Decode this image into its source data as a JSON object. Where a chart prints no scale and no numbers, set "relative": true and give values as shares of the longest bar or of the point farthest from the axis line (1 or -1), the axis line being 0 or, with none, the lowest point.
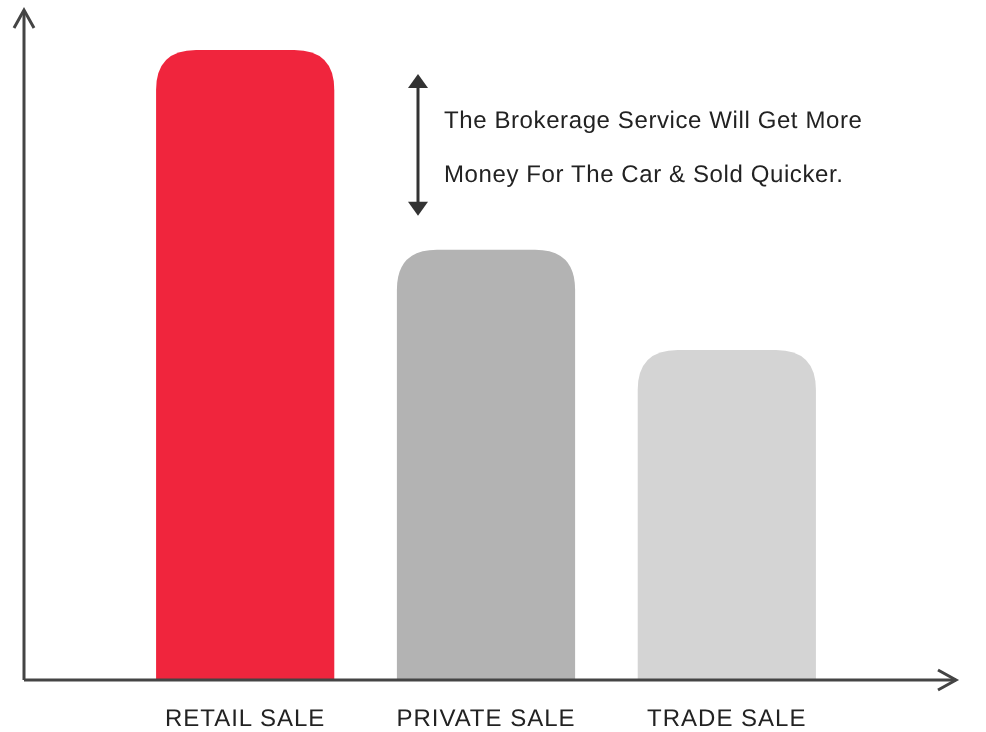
{
  "chart_data": {
    "type": "bar",
    "relative": true,
    "categories": [
      "RETAIL SALE",
      "PRIVATE SALE",
      "TRADE SALE"
    ],
    "values": [
      1,
      0.683,
      0.524
    ],
    "colors": [
      "#f0253d",
      "#b3b3b3",
      "#d4d4d4"
    ],
    "annotations": [
      "The Brokerage Service Will Get More Money For The Car & Sold Quicker."
    ],
    "title": null
  }
}
